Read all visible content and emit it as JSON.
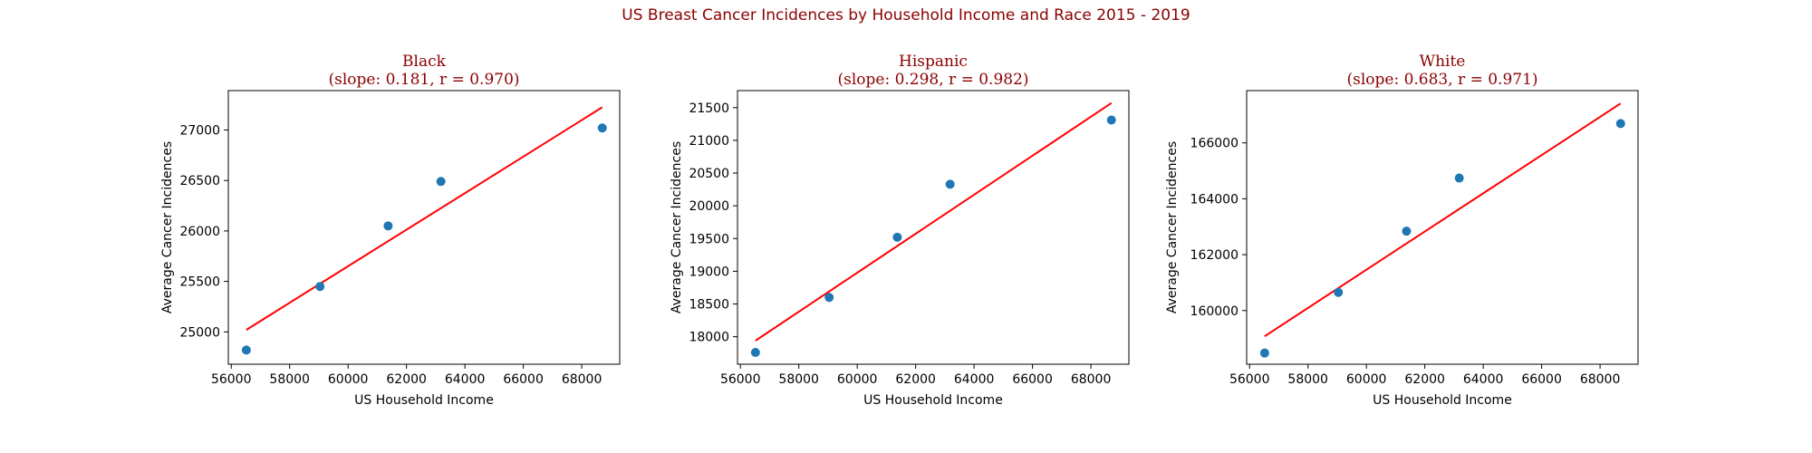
{
  "figure": {
    "title": "US Breast Cancer Incidences by Household Income and Race 2015 - 2019",
    "title_color": "#8b0000"
  },
  "chart_data": [
    {
      "type": "scatter",
      "title": "Black",
      "subtitle": "(slope: 0.181, r = 0.970)",
      "xlabel": "US Household Income",
      "ylabel": "Average Cancer Incidences",
      "xlim": [
        55900,
        69300
      ],
      "ylim": [
        24680,
        27390
      ],
      "xticks": [
        56000,
        58000,
        60000,
        62000,
        64000,
        66000,
        68000
      ],
      "yticks": [
        25000,
        25500,
        26000,
        26500,
        27000
      ],
      "x": [
        56516,
        59039,
        61372,
        63179,
        68703
      ],
      "y": [
        24820,
        25450,
        26050,
        26490,
        27020
      ],
      "fit_line": {
        "slope": 0.181,
        "r": 0.97,
        "x": [
          56516,
          68703
        ],
        "y": [
          25020,
          27225
        ]
      },
      "marker_color": "#1f77b4",
      "line_color": "#ff0000",
      "grid": false
    },
    {
      "type": "scatter",
      "title": "Hispanic",
      "subtitle": "(slope: 0.298, r = 0.982)",
      "xlabel": "US Household Income",
      "ylabel": "Average Cancer Incidences",
      "xlim": [
        55900,
        69300
      ],
      "ylim": [
        17580,
        21760
      ],
      "xticks": [
        56000,
        58000,
        60000,
        62000,
        64000,
        66000,
        68000
      ],
      "yticks": [
        18000,
        18500,
        19000,
        19500,
        20000,
        20500,
        21000,
        21500
      ],
      "x": [
        56516,
        59039,
        61372,
        63179,
        68703
      ],
      "y": [
        17760,
        18600,
        19520,
        20330,
        21310
      ],
      "fit_line": {
        "slope": 0.298,
        "r": 0.982,
        "x": [
          56516,
          68703
        ],
        "y": [
          17940,
          21570
        ]
      },
      "marker_color": "#1f77b4",
      "line_color": "#ff0000",
      "grid": false
    },
    {
      "type": "scatter",
      "title": "White",
      "subtitle": "(slope: 0.683, r = 0.971)",
      "xlabel": "US Household Income",
      "ylabel": "Average Cancer Incidences",
      "xlim": [
        55900,
        69300
      ],
      "ylim": [
        158080,
        167870
      ],
      "xticks": [
        56000,
        58000,
        60000,
        62000,
        64000,
        66000,
        68000
      ],
      "yticks": [
        160000,
        162000,
        164000,
        166000
      ],
      "x": [
        56516,
        59039,
        61372,
        63179,
        68703
      ],
      "y": [
        158480,
        160650,
        162840,
        164740,
        166690
      ],
      "fit_line": {
        "slope": 0.683,
        "r": 0.971,
        "x": [
          56516,
          68703
        ],
        "y": [
          159080,
          167410
        ]
      },
      "marker_color": "#1f77b4",
      "line_color": "#ff0000",
      "grid": false
    }
  ]
}
